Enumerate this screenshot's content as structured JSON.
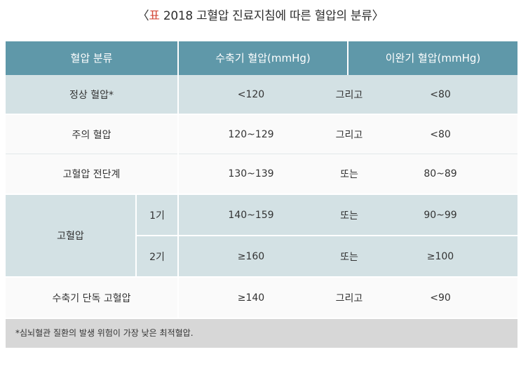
{
  "caption": {
    "open": "〈",
    "mark": "표",
    "text": " 2018 고혈압 진료지침에 따른 혈압의 분류",
    "close": "〉"
  },
  "header": {
    "category": "혈압 분류",
    "systolic": "수축기 혈압(mmHg)",
    "diastolic": "이완기 혈압(mmHg)"
  },
  "rows": [
    {
      "category": "정상 혈압*",
      "systolic": "<120",
      "conj": "그리고",
      "diastolic": "<80"
    },
    {
      "category": "주의 혈압",
      "systolic": "120~129",
      "conj": "그리고",
      "diastolic": "<80"
    },
    {
      "category": "고혈압 전단계",
      "systolic": "130~139",
      "conj": "또는",
      "diastolic": "80~89"
    },
    {
      "category": "고혈압",
      "stage": "1기",
      "systolic": "140~159",
      "conj": "또는",
      "diastolic": "90~99"
    },
    {
      "category": "고혈압",
      "stage": "2기",
      "systolic": "≥160",
      "conj": "또는",
      "diastolic": "≥100"
    },
    {
      "category": "수축기 단독 고혈압",
      "systolic": "≥140",
      "conj": "그리고",
      "diastolic": "<90"
    }
  ],
  "footnote": "*심뇌혈관 질환의 발생 위험이 가장 낮은 최적혈압.",
  "colors": {
    "header_bg": "#5f98a9",
    "row_shade": "#d3e1e4",
    "footnote_bg": "#d7d7d7",
    "caption_mark": "#d44a3a"
  }
}
